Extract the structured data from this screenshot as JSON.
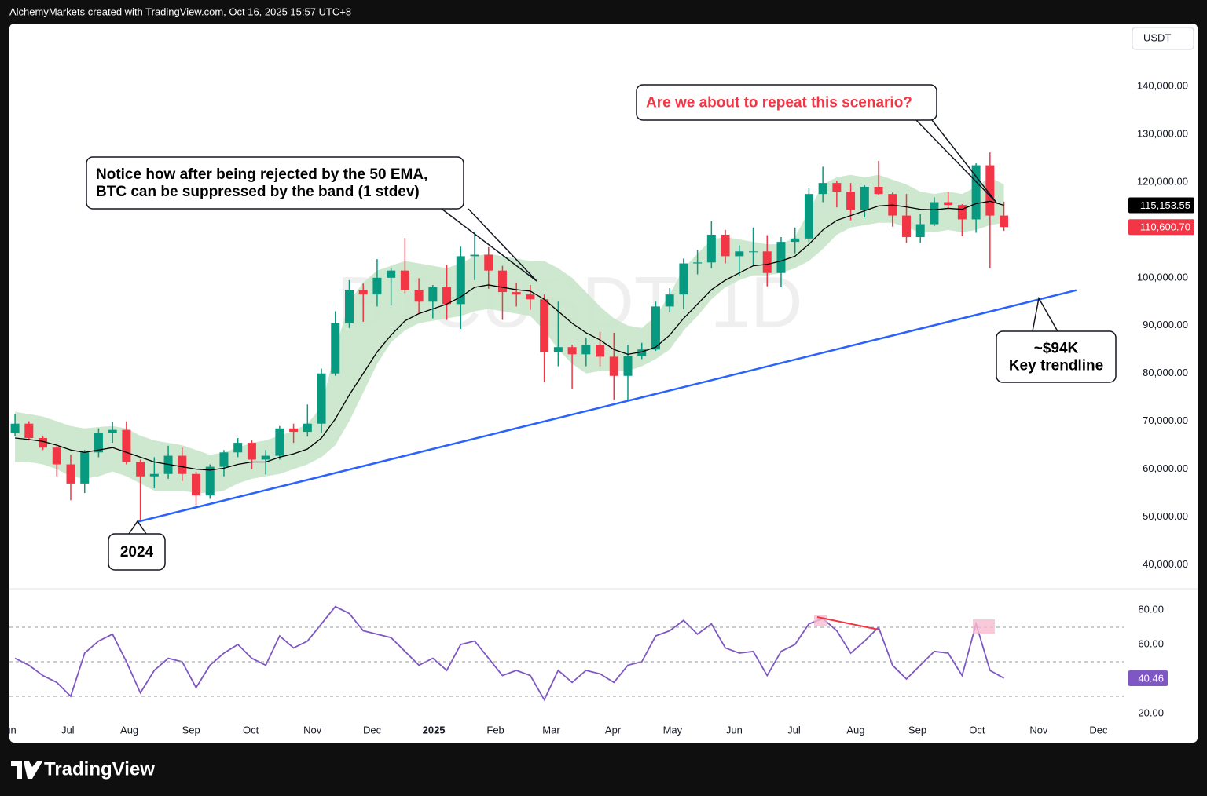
{
  "header": "AlchemyMarkets created with TradingView.com, Oct 16, 2025 15:57 UTC+8",
  "footer_brand": "TradingView",
  "chart_data": {
    "type": "candlestick",
    "watermark": "BTCUSDT, 1D",
    "currency": "USDT",
    "x": [
      0.5,
      1.5,
      2.5,
      3.5,
      4.5,
      5.5,
      6.5,
      7.5,
      8.5,
      9.5,
      10.5,
      11.5,
      12.5,
      13.5,
      14.5,
      15.5,
      16.5,
      17.5,
      18.5,
      19.5,
      20.5,
      21.5,
      22.5,
      23.5,
      24.5,
      25.5,
      26.5,
      27.5,
      28.5,
      29.5,
      30.5,
      31.5,
      32.5,
      33.5,
      34.5,
      35.5,
      36.5,
      37.5,
      38.5,
      39.5,
      40.5,
      41.5,
      42.5,
      43.5,
      44.5,
      45.5,
      46.5,
      47.5,
      48.5,
      49.5,
      50.5,
      51.5,
      52.5,
      53.5,
      54.5,
      55.5,
      56.5,
      57.5,
      58.5,
      59.5,
      60.5,
      61.5,
      62.5,
      63.5,
      64.5,
      65.5,
      66.5,
      67.5,
      68.5,
      69.5,
      70.5,
      71.5
    ],
    "xlim": [
      0.1,
      80.1
    ],
    "xticks": [
      {
        "value": 0,
        "label": "Jun"
      },
      {
        "value": 4.29,
        "label": "Jul"
      },
      {
        "value": 8.71,
        "label": "Aug"
      },
      {
        "value": 13.14,
        "label": "Sep"
      },
      {
        "value": 17.43,
        "label": "Oct"
      },
      {
        "value": 21.86,
        "label": "Nov"
      },
      {
        "value": 26.14,
        "label": "Dec"
      },
      {
        "value": 30.57,
        "label": "2025"
      },
      {
        "value": 35,
        "label": "Feb"
      },
      {
        "value": 39,
        "label": "Mar"
      },
      {
        "value": 43.43,
        "label": "Apr"
      },
      {
        "value": 47.71,
        "label": "May"
      },
      {
        "value": 52.14,
        "label": "Jun"
      },
      {
        "value": 56.43,
        "label": "Jul"
      },
      {
        "value": 60.86,
        "label": "Aug"
      },
      {
        "value": 65.29,
        "label": "Sep"
      },
      {
        "value": 69.57,
        "label": "Oct"
      },
      {
        "value": 74,
        "label": "Nov"
      },
      {
        "value": 78.29,
        "label": "Dec"
      }
    ],
    "open": [
      67500,
      69500,
      66500,
      64500,
      61000,
      57000,
      63500,
      67500,
      68200,
      61500,
      58500,
      59000,
      62800,
      59000,
      54500,
      60500,
      63500,
      65500,
      62000,
      62800,
      68500,
      67800,
      69500,
      80000,
      90500,
      97500,
      96500,
      100000,
      101500,
      97500,
      95000,
      98000,
      94500,
      104500,
      104800,
      101500,
      97000,
      96500,
      95500,
      84500,
      85500,
      84000,
      86000,
      83500,
      79500,
      83600,
      85000,
      94000,
      96500,
      103000,
      103200,
      109000,
      104500,
      105500,
      105500,
      101000,
      107500,
      108200,
      117500,
      119800,
      118000,
      114200,
      119000,
      117500,
      113000,
      108500,
      111200,
      115800,
      115200,
      112200,
      123500,
      113000
    ],
    "high": [
      71500,
      70000,
      67000,
      64800,
      63000,
      64000,
      68500,
      69800,
      70000,
      62000,
      62500,
      64900,
      64500,
      59500,
      61000,
      64000,
      66500,
      66000,
      64000,
      69000,
      69500,
      73500,
      81000,
      93000,
      99500,
      98800,
      103900,
      102000,
      108300,
      99900,
      98500,
      102700,
      106500,
      109500,
      106400,
      102500,
      99000,
      98500,
      96500,
      95000,
      86000,
      87500,
      88700,
      88500,
      86000,
      86400,
      95000,
      97800,
      104000,
      105800,
      111800,
      110000,
      106800,
      110500,
      108900,
      108500,
      110500,
      118800,
      123200,
      120300,
      119800,
      119300,
      124400,
      117800,
      117500,
      113300,
      116800,
      117900,
      115400,
      123900,
      126200,
      115900
    ],
    "low": [
      67000,
      66000,
      64000,
      58500,
      53500,
      55000,
      62500,
      65500,
      61000,
      49000,
      56000,
      58000,
      57500,
      52500,
      53800,
      58500,
      62500,
      60000,
      58900,
      62000,
      65500,
      66800,
      67500,
      79500,
      89500,
      90800,
      94000,
      94200,
      96800,
      92500,
      91500,
      91200,
      89300,
      99500,
      97700,
      91200,
      94000,
      93300,
      78200,
      81500,
      76700,
      81500,
      81500,
      74500,
      74400,
      83000,
      84700,
      92800,
      93400,
      100700,
      102000,
      103000,
      100300,
      102500,
      98200,
      98000,
      105100,
      107500,
      115800,
      114700,
      112000,
      112600,
      117200,
      110700,
      107300,
      107300,
      110800,
      114400,
      108700,
      109400,
      102000,
      109800
    ],
    "close": [
      69500,
      66500,
      64500,
      61000,
      57000,
      63500,
      67500,
      68200,
      61500,
      58500,
      59000,
      62800,
      59000,
      54500,
      60500,
      63500,
      65500,
      62000,
      62800,
      68500,
      67800,
      69500,
      80000,
      90500,
      97500,
      96500,
      100000,
      101500,
      97500,
      95000,
      98000,
      94500,
      104500,
      104800,
      101500,
      97000,
      96500,
      95500,
      84500,
      85500,
      84000,
      86000,
      83500,
      79500,
      83600,
      85000,
      94000,
      96500,
      103000,
      103200,
      109000,
      104500,
      105500,
      105500,
      101000,
      107500,
      108200,
      117500,
      119800,
      118000,
      114200,
      119000,
      117500,
      113000,
      108500,
      111200,
      115800,
      115200,
      112200,
      123500,
      113000,
      110600.7
    ],
    "up_color": "#089981",
    "down_color": "#f23645",
    "ema": {
      "color": "#000000",
      "values": [
        66500,
        66200,
        65800,
        65000,
        64000,
        63500,
        64000,
        64500,
        63500,
        62500,
        61500,
        61000,
        60500,
        60000,
        59800,
        60200,
        61000,
        61500,
        61500,
        62500,
        63200,
        64200,
        66500,
        70500,
        75500,
        80000,
        84500,
        88000,
        91000,
        92500,
        93500,
        94500,
        96000,
        98000,
        98500,
        98000,
        97500,
        97200,
        95500,
        93000,
        90500,
        88500,
        87000,
        85000,
        84000,
        84500,
        85500,
        88000,
        91500,
        94500,
        97500,
        99500,
        101000,
        102500,
        102800,
        103500,
        104500,
        107000,
        110000,
        112000,
        113000,
        114000,
        115000,
        115200,
        114800,
        114300,
        114200,
        114500,
        114300,
        115500,
        116000,
        115153.55
      ]
    },
    "band": {
      "color": "#c8e6c9",
      "upper": [
        72000,
        71500,
        71000,
        70000,
        69000,
        68500,
        68800,
        69000,
        68500,
        67000,
        66000,
        65500,
        65000,
        64000,
        63000,
        63500,
        64500,
        65500,
        66000,
        67000,
        68000,
        69500,
        73000,
        85000,
        95000,
        99000,
        101500,
        102500,
        103500,
        103000,
        102500,
        102000,
        103000,
        104500,
        105000,
        104500,
        104000,
        103500,
        103500,
        102000,
        100000,
        97000,
        94000,
        91500,
        90000,
        89500,
        92000,
        96500,
        102000,
        105000,
        108000,
        108500,
        108000,
        107500,
        107000,
        107000,
        108500,
        114000,
        119500,
        121000,
        121500,
        121000,
        121500,
        120500,
        119500,
        118000,
        117500,
        118000,
        117500,
        119000,
        121000,
        119500
      ],
      "lower": [
        61500,
        61500,
        61000,
        60000,
        58500,
        58000,
        58500,
        59500,
        58500,
        57000,
        55500,
        55500,
        55500,
        55000,
        55000,
        55500,
        57000,
        58000,
        58500,
        59000,
        60000,
        61000,
        62500,
        65000,
        70000,
        76000,
        82000,
        86500,
        89000,
        90500,
        91000,
        91500,
        92000,
        93000,
        93500,
        93000,
        92500,
        92000,
        89000,
        85000,
        82000,
        80000,
        80500,
        80500,
        80500,
        81500,
        83000,
        85000,
        89000,
        92000,
        95500,
        98000,
        99500,
        100500,
        100500,
        101000,
        102000,
        103500,
        106000,
        109000,
        110500,
        111000,
        111500,
        111500,
        110500,
        109500,
        109500,
        110000,
        109500,
        110000,
        111000,
        111500
      ]
    },
    "ylim": [
      35000,
      152800
    ],
    "yticks": [
      {
        "value": 40000,
        "label": "40,000.00"
      },
      {
        "value": 50000,
        "label": "50,000.00"
      },
      {
        "value": 60000,
        "label": "60,000.00"
      },
      {
        "value": 70000,
        "label": "70,000.00"
      },
      {
        "value": 80000,
        "label": "80,000.00"
      },
      {
        "value": 90000,
        "label": "90,000.00"
      },
      {
        "value": 100000,
        "label": "100,000.00"
      },
      {
        "value": 110000,
        "label": "110,000.00"
      },
      {
        "value": 120000,
        "label": "120,000.00"
      },
      {
        "value": 130000,
        "label": "130,000.00"
      },
      {
        "value": 140000,
        "label": "140,000.00"
      }
    ],
    "price_badges": [
      {
        "value": 115153.55,
        "label": "115,153.55",
        "color": "#000000"
      },
      {
        "value": 110600.7,
        "label": "110,600.70",
        "color": "#f23645"
      }
    ],
    "trendline": {
      "x": [
        9.3,
        76.7
      ],
      "values": [
        49000,
        97400
      ],
      "color": "#2962ff"
    },
    "annotations": [
      {
        "lines": [
          "Notice how after being rejected by the 50 EMA,",
          "BTC can be suppressed by the band (1 stdev)"
        ],
        "color": "#000000"
      },
      {
        "lines": [
          "Are we about to repeat this scenario?"
        ],
        "color": "#f23645"
      },
      {
        "lines": [
          "~$94K",
          "Key trendline"
        ],
        "color": "#000000"
      },
      {
        "lines": [
          "2024"
        ],
        "color": "#000000"
      }
    ],
    "rsi": {
      "color": "#7e57c2",
      "ylim": [
        4.5,
        91.4
      ],
      "yticks": [
        {
          "value": 20,
          "label": "20.00"
        },
        {
          "value": 60,
          "label": "60.00"
        },
        {
          "value": 80,
          "label": "80.00"
        }
      ],
      "levels": [
        70,
        50,
        30
      ],
      "values": [
        52,
        48,
        42,
        38,
        30,
        55,
        62,
        66,
        50,
        32,
        45,
        52,
        50,
        35,
        48,
        55,
        60,
        52,
        48,
        65,
        58,
        62,
        72,
        82,
        78,
        68,
        66,
        64,
        56,
        48,
        52,
        45,
        60,
        62,
        52,
        42,
        45,
        42,
        28,
        45,
        38,
        45,
        43,
        38,
        48,
        50,
        65,
        68,
        74,
        66,
        72,
        58,
        55,
        56,
        42,
        56,
        60,
        72,
        75,
        68,
        55,
        62,
        70,
        48,
        40,
        48,
        56,
        55,
        42,
        72,
        45,
        40.46
      ]
    }
  }
}
